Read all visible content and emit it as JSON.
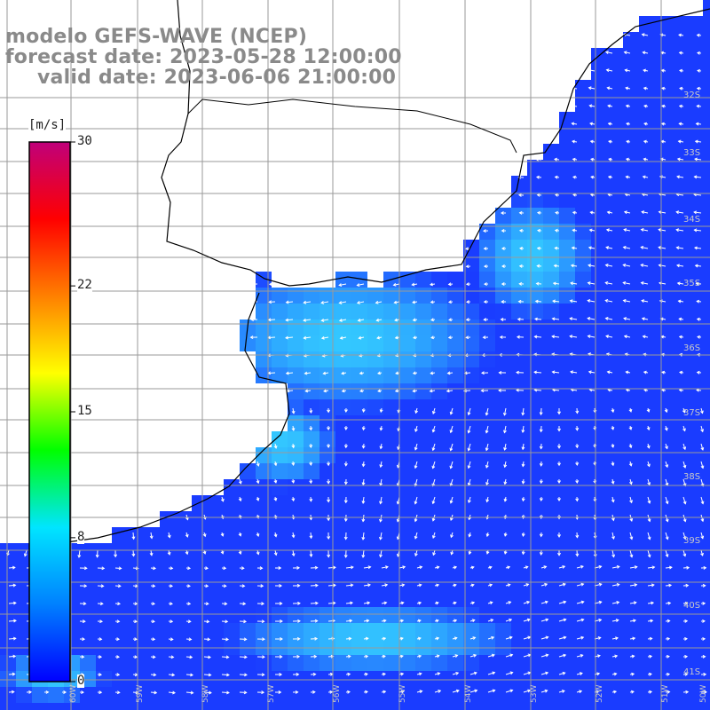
{
  "title": {
    "line1": "modelo GEFS-WAVE (NCEP)",
    "line2": "forecast date: 2023-05-28 12:00:00",
    "line3": "valid date: 2023-06-06 21:00:00"
  },
  "colorbar": {
    "unit": "[m/s]",
    "ticks": [
      {
        "label": "30",
        "value": 30
      },
      {
        "label": "22",
        "value": 22
      },
      {
        "label": "15",
        "value": 15
      },
      {
        "label": "8",
        "value": 8
      },
      {
        "label": "0",
        "value": 0
      }
    ],
    "colors": [
      "#0000ff",
      "#0080ff",
      "#00e5ff",
      "#00ff00",
      "#ffff00",
      "#ff8000",
      "#ff0000",
      "#c0007a"
    ]
  },
  "lat_labels": [
    "32S",
    "33S",
    "34S",
    "35S",
    "36S",
    "37S",
    "38S",
    "39S",
    "40S",
    "41S"
  ],
  "lon_labels": [
    "60W",
    "59W",
    "58W",
    "57W",
    "56W",
    "55W",
    "54W",
    "53W",
    "52W",
    "51W",
    "50W"
  ],
  "colors": {
    "land": "#ffffff",
    "ocean_deep": "#1a3cff",
    "ocean_light": "#33c8ff",
    "grid": "#9a9a9a",
    "coast": "#000000",
    "title": "#8a8a8a"
  }
}
